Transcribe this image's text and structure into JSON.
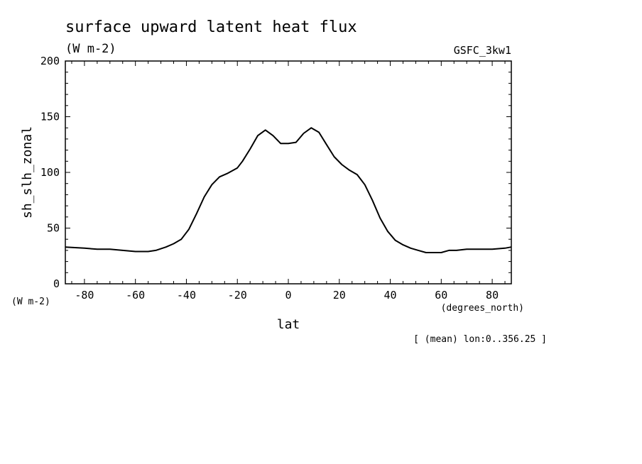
{
  "chart_data": {
    "type": "line",
    "title": "surface upward latent heat flux",
    "subtitle": "(W m-2)",
    "source_label": "GSFC_3kw1",
    "xlabel": "lat",
    "x_unit": "(degrees_north)",
    "ylabel": "sh_slh_zonal",
    "y_unit": "(W m-2)",
    "footnote": "[ (mean) lon:0..356.25 ]",
    "xlim": [
      -87.5,
      87.5
    ],
    "ylim": [
      0,
      200
    ],
    "xticks": [
      -80,
      -60,
      -40,
      -20,
      0,
      20,
      40,
      60,
      80
    ],
    "yticks": [
      0,
      50,
      100,
      150,
      200
    ],
    "grid": false,
    "series": [
      {
        "x": [
          -87.5,
          -80,
          -75,
          -70,
          -65,
          -60,
          -55,
          -52,
          -48,
          -45,
          -42,
          -39,
          -36,
          -33,
          -30,
          -27,
          -24,
          -20,
          -18,
          -15,
          -12,
          -9,
          -6,
          -3,
          0,
          3,
          6,
          9,
          12,
          15,
          18,
          21,
          24,
          27,
          30,
          33,
          36,
          39,
          42,
          45,
          48,
          51,
          54,
          57,
          60,
          63,
          66,
          70,
          75,
          80,
          85,
          87.5
        ],
        "y": [
          33,
          32,
          31,
          31,
          30,
          29,
          29,
          30,
          33,
          36,
          40,
          49,
          63,
          78,
          89,
          96,
          99,
          104,
          110,
          121,
          133,
          138,
          133,
          126,
          126,
          127,
          135,
          140,
          136,
          125,
          114,
          107,
          102,
          98,
          89,
          75,
          59,
          47,
          39,
          35,
          32,
          30,
          28,
          28,
          28,
          30,
          30,
          31,
          31,
          31,
          32,
          33
        ]
      }
    ]
  }
}
